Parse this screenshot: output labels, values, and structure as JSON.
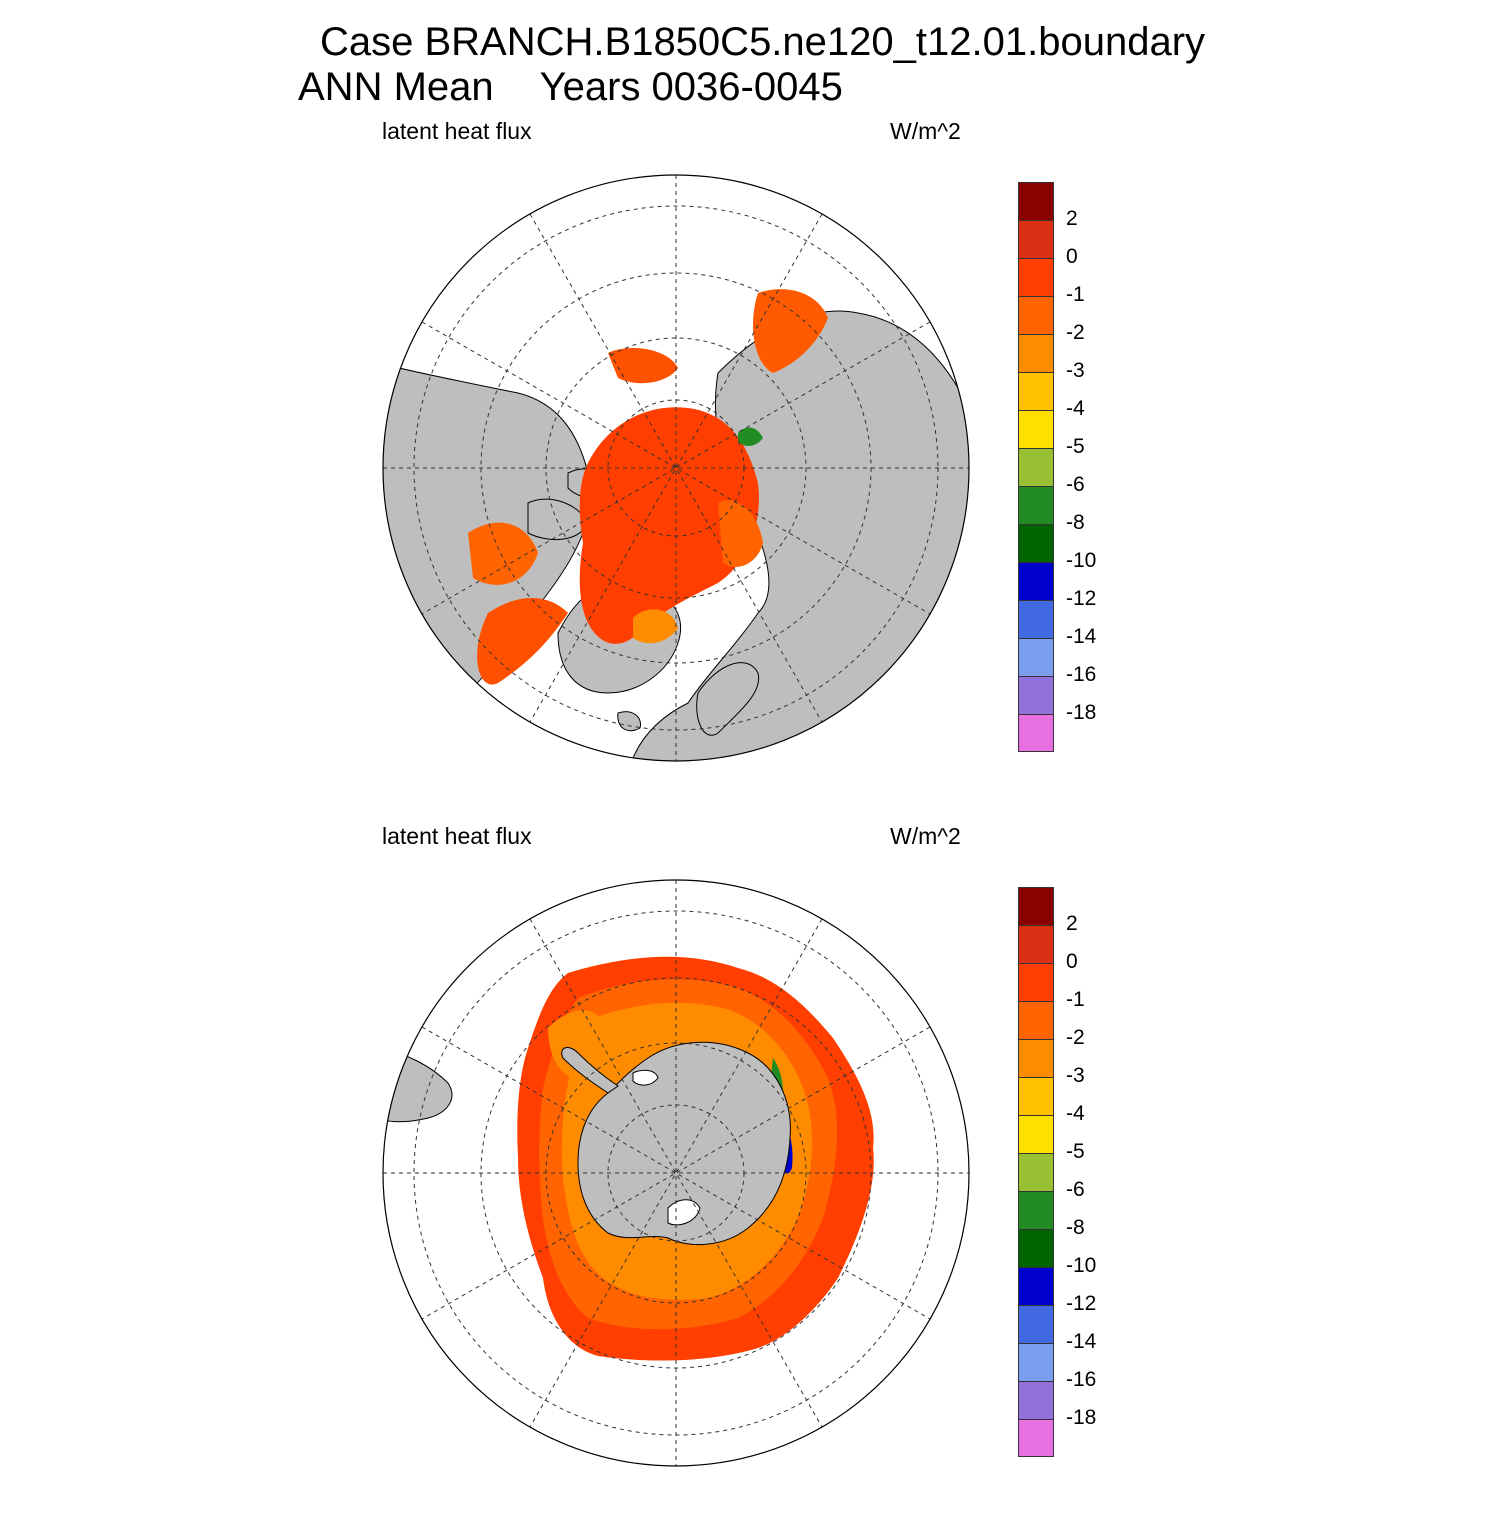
{
  "title": {
    "line1": "Case BRANCH.B1850C5.ne120_t12.01.boundary",
    "line2_left": "ANN Mean",
    "line2_right": "Years 0036-0045"
  },
  "panels": [
    {
      "variable_label": "latent heat flux",
      "units_label": "W/m^2",
      "hemisphere": "north"
    },
    {
      "variable_label": "latent heat flux",
      "units_label": "W/m^2",
      "hemisphere": "south"
    }
  ],
  "colorbar": {
    "colors": [
      "#8b0000",
      "#d93013",
      "#ff3e00",
      "#ff6400",
      "#ff8c00",
      "#ffc000",
      "#ffe000",
      "#99bf33",
      "#228b22",
      "#006400",
      "#0000cd",
      "#4169e1",
      "#7b9ef0",
      "#9370db",
      "#e86fe0"
    ],
    "tick_labels": [
      "2",
      "0",
      "-1",
      "-2",
      "-3",
      "-4",
      "-5",
      "-6",
      "-8",
      "-10",
      "-12",
      "-14",
      "-16",
      "-18"
    ]
  },
  "map_colors": {
    "land": "#bebebe",
    "ocean_no_ice": "#ffffff",
    "ice_main": "#ff3e00",
    "ice_mid": "#ff6400",
    "ice_low": "#ff8c00"
  }
}
